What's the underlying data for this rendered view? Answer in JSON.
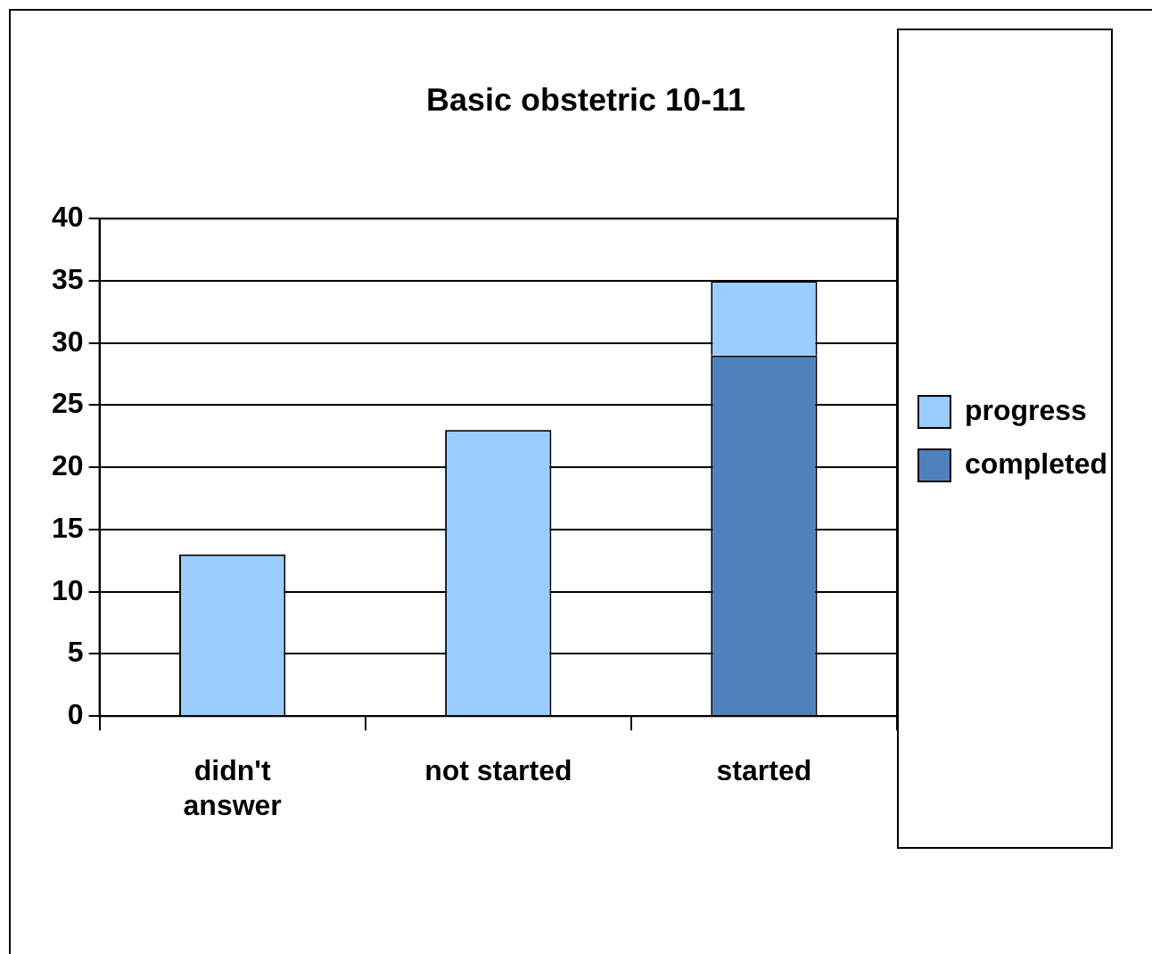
{
  "chart_data": {
    "type": "bar",
    "title": "Basic obstetric 10-11",
    "categories": [
      "didn't answer",
      "not started",
      "started"
    ],
    "stacked": true,
    "series": [
      {
        "name": "completed",
        "color": "#4f81bd",
        "values": [
          null,
          null,
          29
        ]
      },
      {
        "name": "progress",
        "color": "#99ccff",
        "values": [
          13,
          23,
          6
        ]
      }
    ],
    "ylim": [
      0,
      40
    ],
    "yticks": [
      0,
      5,
      10,
      15,
      20,
      25,
      30,
      35,
      40
    ],
    "grid": "y",
    "legend": "right"
  }
}
